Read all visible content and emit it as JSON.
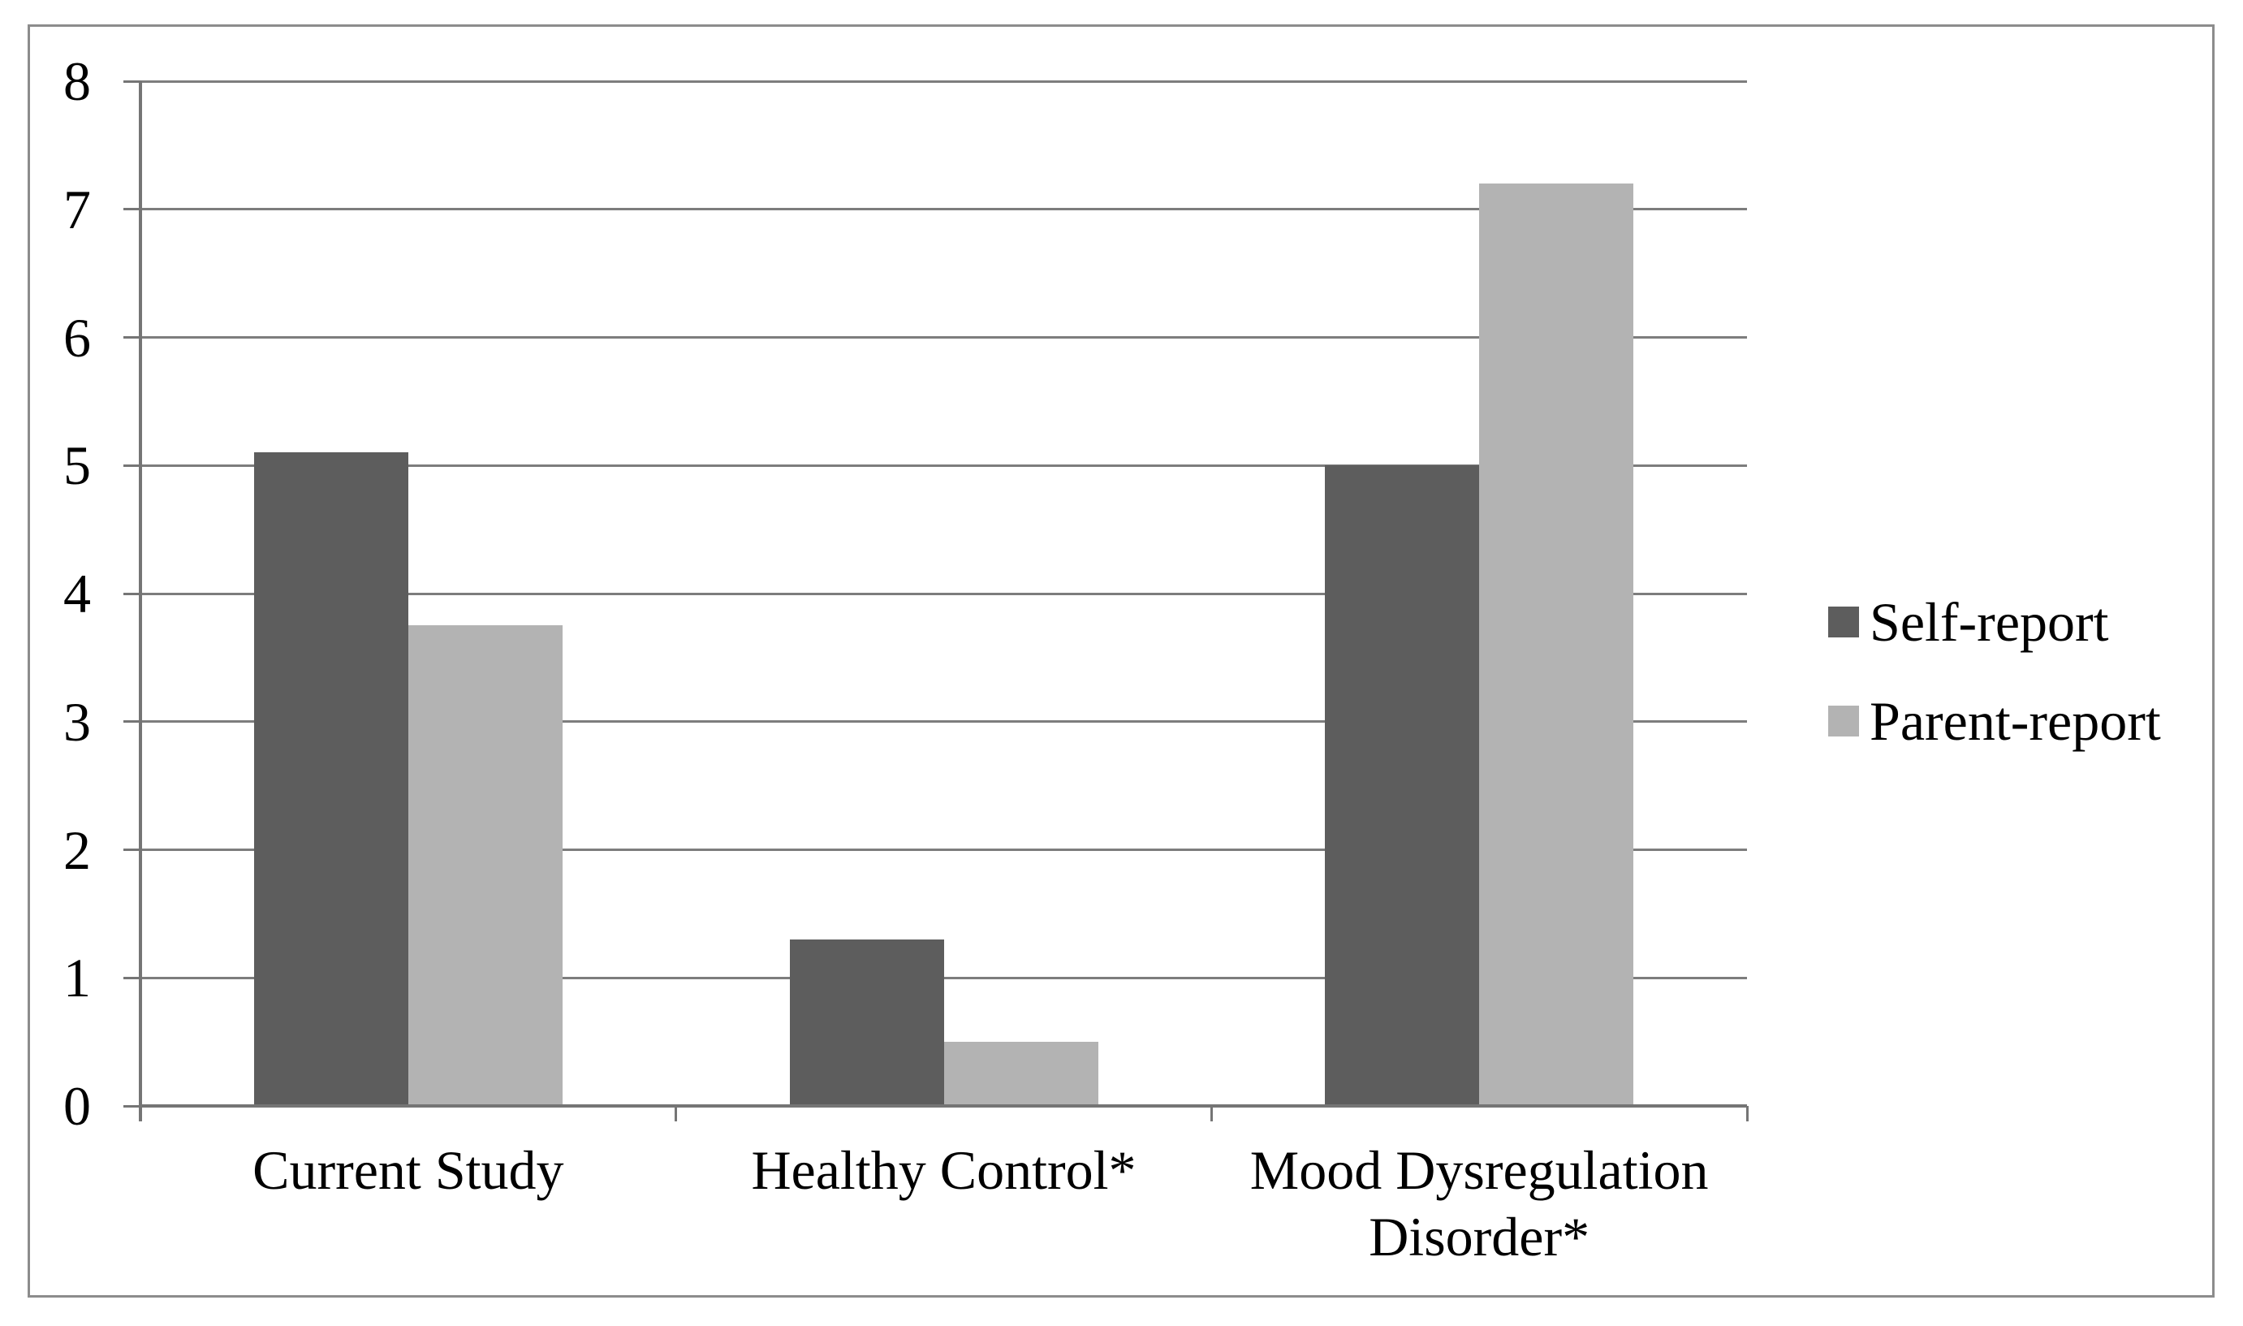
{
  "chart_data": {
    "type": "bar",
    "title": "",
    "xlabel": "",
    "ylabel": "",
    "categories": [
      "Current Study",
      "Healthy Control*",
      "Mood Dysregulation Disorder*"
    ],
    "series": [
      {
        "name": "Self-report",
        "color": "#5d5d5d",
        "values": [
          5.1,
          1.3,
          5.0
        ]
      },
      {
        "name": "Parent-report",
        "color": "#b3b3b3",
        "values": [
          3.75,
          0.5,
          7.2
        ]
      }
    ],
    "ylim": [
      0,
      8
    ],
    "yticks": [
      0,
      1,
      2,
      3,
      4,
      5,
      6,
      7,
      8
    ],
    "ytick_labels": [
      "0",
      "1",
      "2",
      "3",
      "4",
      "5",
      "6",
      "7",
      "8"
    ],
    "grid": true,
    "legend_position": "right-middle",
    "colors": {
      "background": "#ffffff",
      "figure_border": "#8c8c8c",
      "gridline": "#7d7d7d",
      "axis": "#757575",
      "text": "#000000"
    }
  }
}
